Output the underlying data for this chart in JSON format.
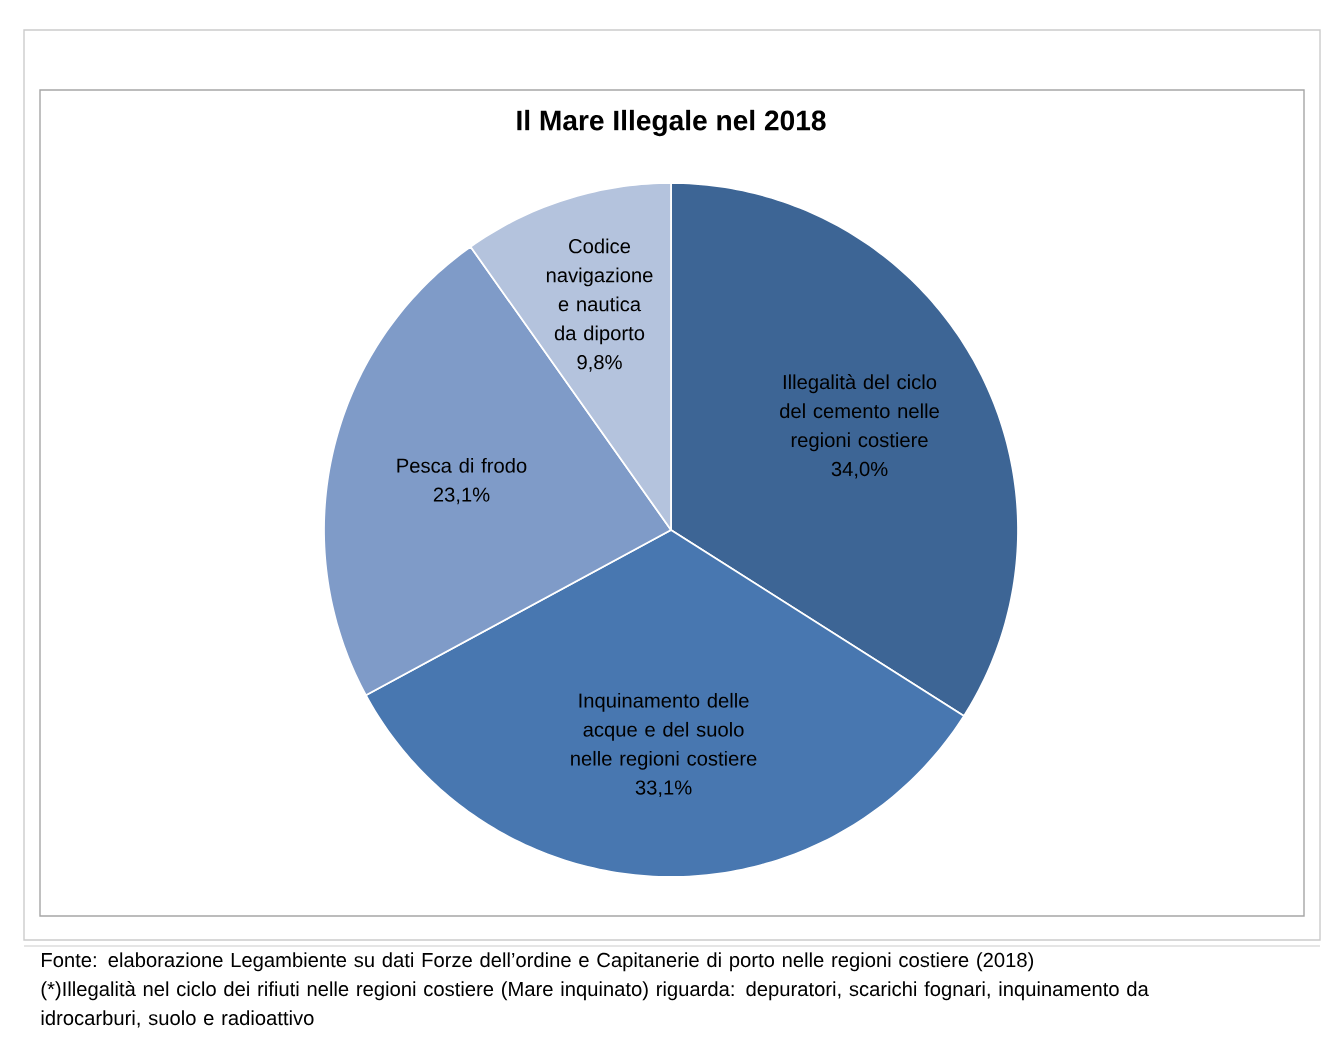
{
  "chart_data": {
    "type": "pie",
    "title": "Il Mare Illegale nel 2018",
    "categories": [
      "Illegalità del ciclo del cemento nelle regioni costiere",
      "Inquinamento delle acque e del suolo nelle regioni costiere",
      "Pesca di frodo",
      "Codice navigazione e nautica da diporto"
    ],
    "values": [
      34.0,
      33.1,
      23.1,
      9.8
    ],
    "value_labels": [
      "34,0%",
      "33,1%",
      "23,1%",
      "9,8%"
    ],
    "colors": [
      "#3d6595",
      "#4877b0",
      "#7f9bc8",
      "#b4c3dd"
    ],
    "annotations": [
      "Fonte: elaborazione Legambiente su dati Forze dell’ordine e Capitanerie di porto nelle regioni costiere (2018)",
      "(*)Illegalità nel ciclo dei rifiuti nelle regioni costiere (Mare inquinato) riguarda: depuratori, scarichi fognari, inquinamento da idrocarburi, suolo e radioattivo"
    ]
  }
}
